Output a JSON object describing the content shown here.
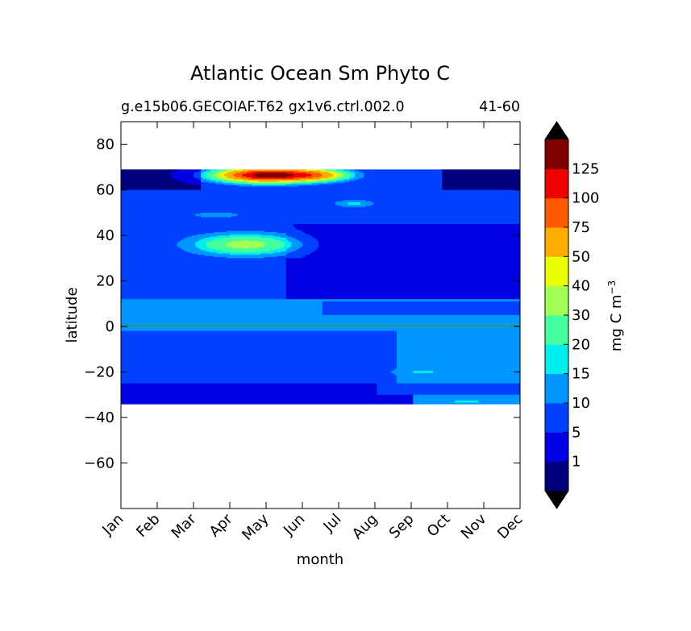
{
  "chart_data": {
    "type": "heatmap",
    "title": "Atlantic Ocean Sm Phyto C",
    "subtitle_left": "g.e15b06.GECOIAF.T62 gx1v6.ctrl.002.0",
    "subtitle_right": "41-60",
    "xlabel": "month",
    "ylabel": "latitude",
    "x_ticks": [
      "Jan",
      "Feb",
      "Mar",
      "Apr",
      "May",
      "Jun",
      "Jul",
      "Aug",
      "Sep",
      "Oct",
      "Nov",
      "Dec"
    ],
    "y_ticks": [
      80,
      60,
      40,
      20,
      0,
      -20,
      -40,
      -60
    ],
    "ylim": [
      -80,
      90
    ],
    "data_lat_range": [
      -34,
      69
    ],
    "colorbar": {
      "label": "mg C m",
      "label_exp": "−3",
      "levels": [
        1,
        5,
        10,
        15,
        20,
        30,
        40,
        50,
        75,
        100,
        125
      ],
      "colors": [
        "#00007f",
        "#0000e3",
        "#0040ff",
        "#0096ff",
        "#00eeee",
        "#45ff9e",
        "#a2ff55",
        "#e8ff00",
        "#ffae00",
        "#ff5a00",
        "#ee0000",
        "#7f0000"
      ],
      "extend": "both"
    },
    "features": [
      {
        "month_start": 3.5,
        "month_end": 6.5,
        "lat": 65.5,
        "peak_value": 110,
        "description_level": "bloom max"
      },
      {
        "month_start": 2.0,
        "month_end": 5.8,
        "lat": 35,
        "peak_value": 35
      },
      {
        "month_start": 5.6,
        "month_end": 7.0,
        "lat": 53,
        "peak_value": 17
      },
      {
        "month_start": 0,
        "month_end": 11,
        "lat": 0,
        "peak_value": 12
      }
    ]
  }
}
